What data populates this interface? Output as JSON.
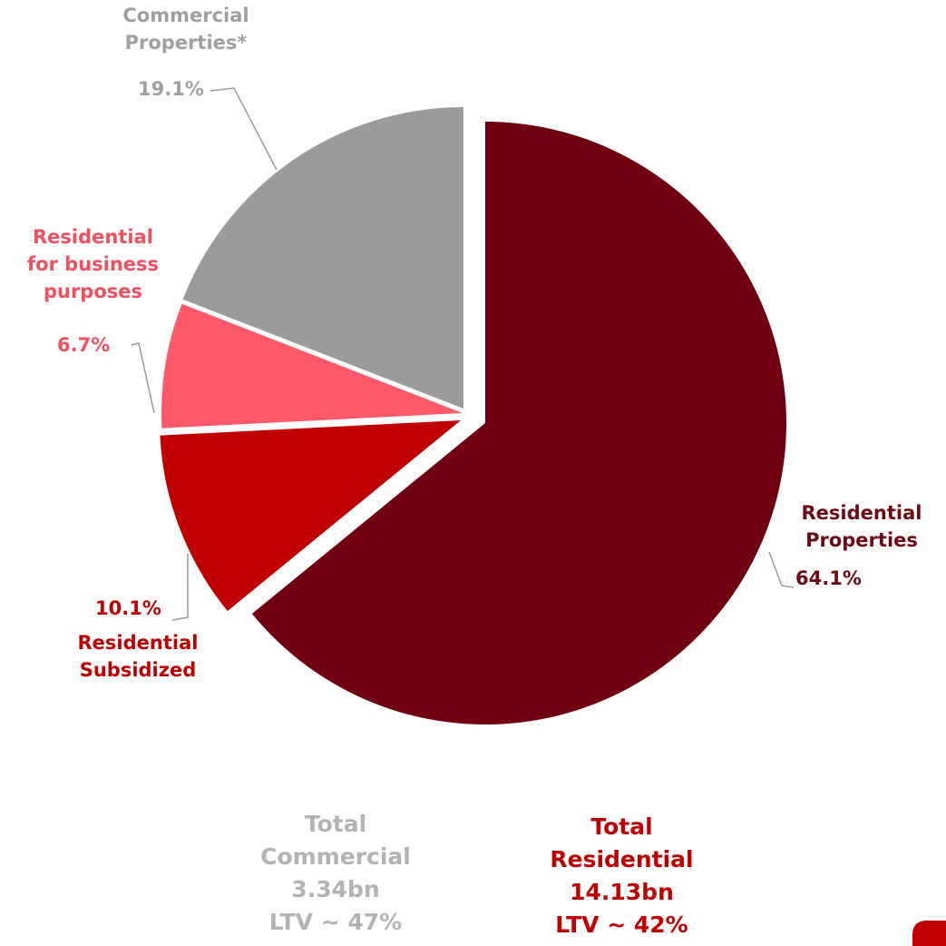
{
  "chart_data": {
    "type": "pie",
    "title": "",
    "slices": [
      {
        "label": "Residential Properties",
        "value": 64.1,
        "value_label": "64.1%",
        "color": "#70000f",
        "label_color": "#6e0a14"
      },
      {
        "label": "Residential Subsidized",
        "value": 10.1,
        "value_label": "10.1%",
        "color": "#c00000",
        "label_color": "#c00000"
      },
      {
        "label": "Residential for business purposes",
        "value": 6.7,
        "value_label": "6.7%",
        "color": "#ff596a",
        "label_color": "#f05060"
      },
      {
        "label": "Commercial Properties*",
        "value": 19.1,
        "value_label": "19.1%",
        "color": "#9b9b9b",
        "label_color": "#a0a0a0"
      }
    ],
    "label_lines": {
      "residential_properties": [
        "Residential",
        "Properties"
      ],
      "residential_subsidized": [
        "Residential",
        "Subsidized"
      ],
      "business": [
        "Residential",
        "for business",
        "purposes"
      ],
      "commercial": [
        "Commercial",
        "Properties*"
      ]
    }
  },
  "totals": {
    "commercial": {
      "lines": [
        "Total",
        "Commercial",
        "3.34bn",
        "LTV ~ 47%"
      ],
      "color": "#b3b3b3"
    },
    "residential": {
      "lines": [
        "Total",
        "Residential",
        "14.13bn",
        "LTV ~ 42%"
      ],
      "color": "#c00000"
    }
  },
  "colors": {
    "leader_line": "#9a9a9a",
    "background": "#ffffff",
    "corner_icon": "#c00000"
  }
}
